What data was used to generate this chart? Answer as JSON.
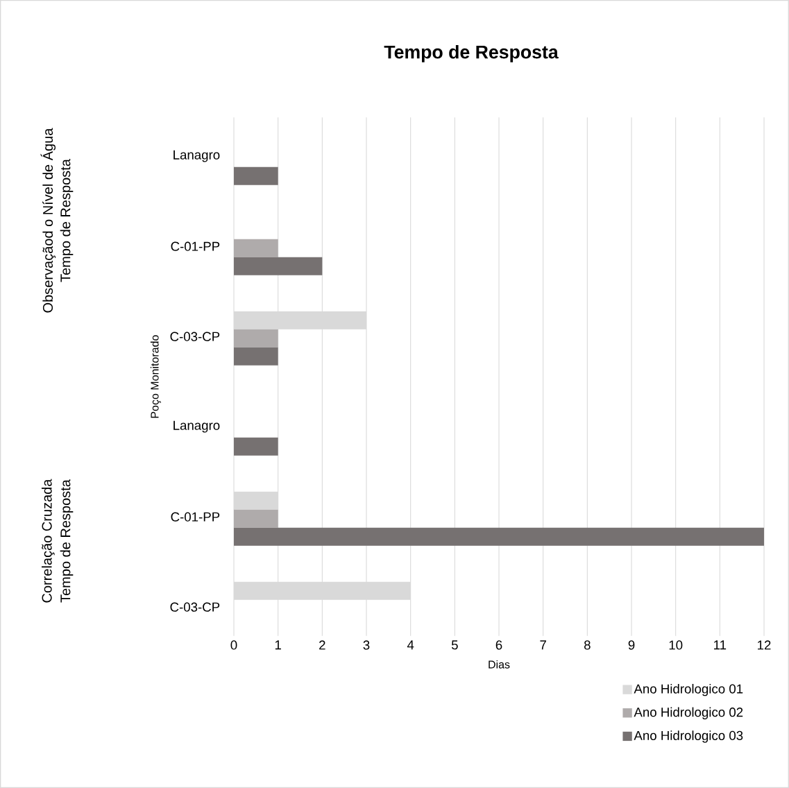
{
  "chart_data": {
    "type": "bar",
    "orientation": "horizontal",
    "title": "Tempo de Resposta",
    "xlabel": "Dias",
    "ylabel": "Poço Monitorado",
    "categories": [
      "Lanagro",
      "C-01-PP",
      "C-03-CP",
      "Lanagro",
      "C-01-PP",
      "C-03-CP"
    ],
    "series": [
      {
        "name": "Ano Hidrologico 01",
        "color": "#d9d9d9",
        "values": [
          null,
          null,
          3,
          null,
          1,
          4
        ]
      },
      {
        "name": "Ano Hidrologico 02",
        "color": "#afabab",
        "values": [
          null,
          1,
          1,
          null,
          1,
          null
        ]
      },
      {
        "name": "Ano Hidrologico 03",
        "color": "#767171",
        "values": [
          1,
          2,
          1,
          1,
          12,
          null
        ]
      }
    ],
    "annotations": [
      "Observaçãod o Nível de Água",
      "Tempo de Resposta",
      "Correlação Cruzada",
      "Tempo de Resposta"
    ],
    "xlim": [
      0,
      12
    ],
    "xticks": [
      0,
      1,
      2,
      3,
      4,
      5,
      6,
      7,
      8,
      9,
      10,
      11,
      12
    ],
    "grid": "x",
    "legend": "bottom right"
  }
}
